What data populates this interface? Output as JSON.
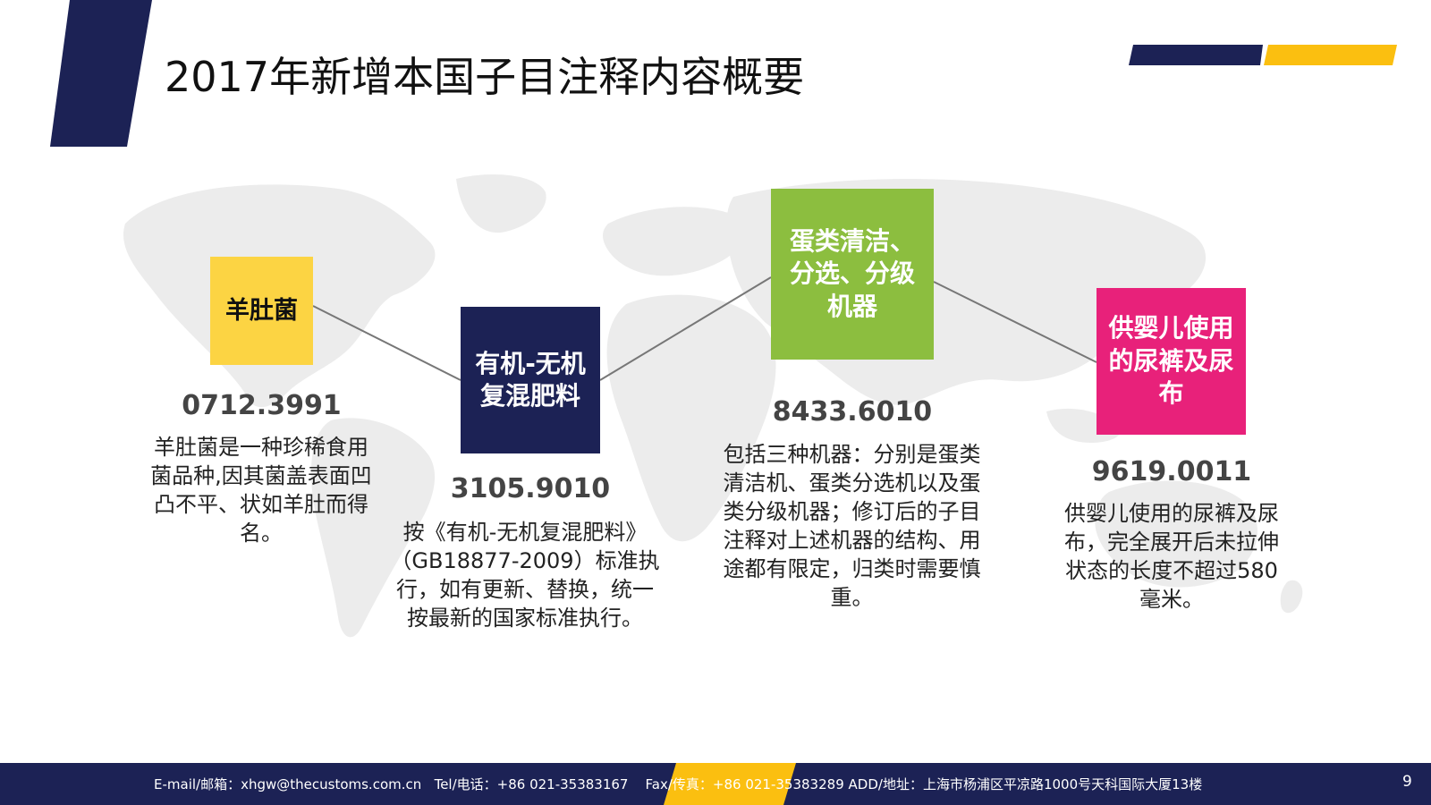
{
  "title": "2017年新增本国子目注释内容概要",
  "colors": {
    "navy": "#1c2255",
    "yellow": "#fcd443",
    "gold": "#fbbf10",
    "green": "#8cbe3f",
    "magenta": "#e8217a"
  },
  "items": [
    {
      "box_label": "羊肚菌",
      "code": "0712.3991",
      "description": "羊肚菌是一种珍稀食用菌品种,因其菌盖表面凹凸不平、状如羊肚而得名。"
    },
    {
      "box_label": "有机-无机复混肥料",
      "code": "3105.9010",
      "description": "按《有机-无机复混肥料》（GB18877-2009）标准执行，如有更新、替换，统一按最新的国家标准执行。"
    },
    {
      "box_label": "蛋类清洁、分选、分级机器",
      "code": "8433.6010",
      "description": "包括三种机器：分别是蛋类清洁机、蛋类分选机以及蛋类分级机器；修订后的子目注释对上述机器的结构、用途都有限定，归类时需要慎重。"
    },
    {
      "box_label": "供婴儿使用的尿裤及尿布",
      "code": "9619.0011",
      "description": "供婴儿使用的尿裤及尿布，完全展开后未拉伸状态的长度不超过580毫米。"
    }
  ],
  "footer": {
    "email": "E-mail/邮箱：xhgw@thecustoms.com.cn",
    "tel": "Tel/电话：+86 021-35383167",
    "fax": "Fax/传真：+86 021-35383289",
    "address": "ADD/地址：上海市杨浦区平凉路1000号天科国际大厦13楼"
  },
  "page_number": "9"
}
